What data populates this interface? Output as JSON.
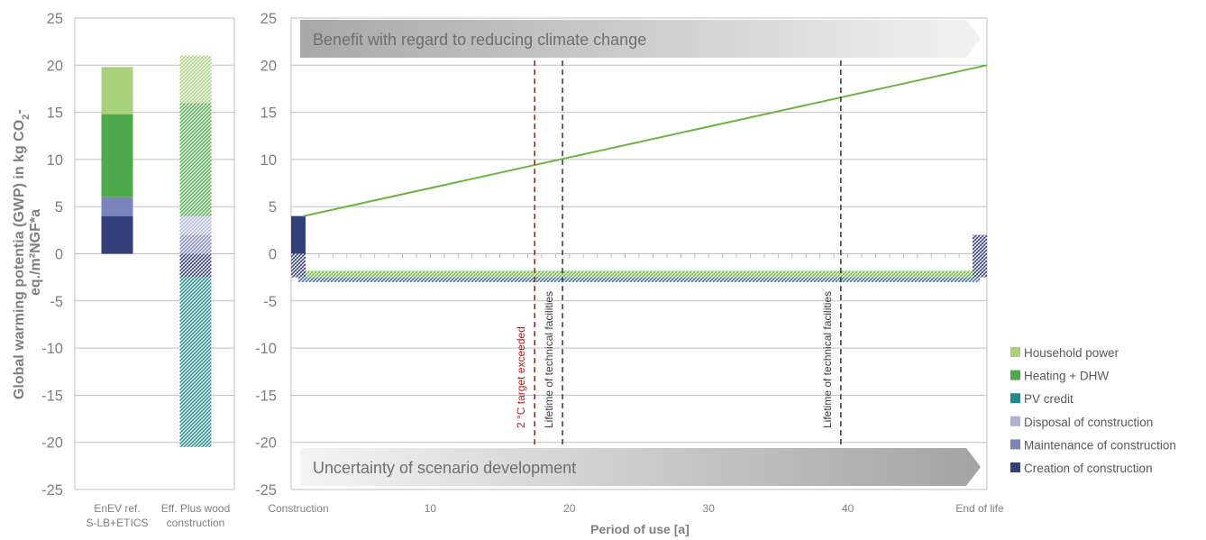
{
  "chart_data": [
    {
      "type": "bar",
      "stacked": true,
      "ylabel_line1": "Global warming potentia (GWP) in kg CO",
      "ylabel_sub": "2",
      "ylabel_tail": "-",
      "ylabel_line2": "eq./m²NGF*a",
      "ylim": [
        -25,
        25
      ],
      "yticks": [
        "25",
        "20",
        "15",
        "10",
        "5",
        "0",
        "-5",
        "-10",
        "-15",
        "-20",
        "-25"
      ],
      "categories": [
        {
          "line1": "EnEV ref.",
          "line2": "S-LB+ETICS"
        },
        {
          "line1": "Eff. Plus wood",
          "line2": "construction"
        }
      ],
      "series": [
        {
          "name": "Creation of construction",
          "color": "#34407a",
          "values": [
            4,
            -2.5
          ],
          "hatched": [
            false,
            true
          ]
        },
        {
          "name": "Maintenance of construction",
          "color": "#7b84bd",
          "values": [
            2,
            2
          ],
          "hatched": [
            false,
            true
          ]
        },
        {
          "name": "Disposal of construction",
          "color": "#aeb2d8",
          "values": [
            0,
            2
          ],
          "hatched": [
            false,
            true
          ]
        },
        {
          "name": "PV credit",
          "color": "#1f8c8c",
          "values": [
            0,
            -18
          ],
          "hatched": [
            false,
            true
          ]
        },
        {
          "name": "Heating + DHW",
          "color": "#4eab4b",
          "values": [
            8.8,
            12
          ],
          "hatched": [
            false,
            true
          ]
        },
        {
          "name": "Household power",
          "color": "#a9d07a",
          "values": [
            5,
            5
          ],
          "hatched": [
            false,
            true
          ]
        }
      ]
    },
    {
      "type": "line",
      "xlabel": "Period of use [a]",
      "ylim": [
        -25,
        25
      ],
      "xlim": [
        0,
        50
      ],
      "yticks": [
        "25",
        "20",
        "15",
        "10",
        "5",
        "0",
        "-5",
        "-10",
        "-15",
        "-20",
        "-25"
      ],
      "xticks": [
        {
          "x": 0,
          "label": "Construction"
        },
        {
          "x": 10,
          "label": "10"
        },
        {
          "x": 20,
          "label": "20"
        },
        {
          "x": 30,
          "label": "30"
        },
        {
          "x": 40,
          "label": "40"
        },
        {
          "x": 50,
          "label": "End of life"
        }
      ],
      "line": {
        "color": "#6cb33f",
        "x": [
          0,
          50
        ],
        "y": [
          4,
          20
        ]
      },
      "bars": [
        {
          "label": "Creation at construction",
          "x": 0,
          "y0": 0,
          "y1": 4,
          "color": "#34407a",
          "hatched": false
        },
        {
          "label": "Creation hatched at construction",
          "x": 0,
          "y0": 0,
          "y1": -2.5,
          "color": "#34407a",
          "hatched": true
        },
        {
          "label": "End of life disposal",
          "x": 50,
          "y0": 2,
          "y1": -2.5,
          "color": "#34407a",
          "hatched": true
        }
      ],
      "bands": [
        {
          "label": "annual green",
          "x0": 0.5,
          "x1": 49.5,
          "y0": -1.8,
          "y1": -2.5,
          "color": "#6cb33f"
        },
        {
          "label": "annual blue",
          "x0": 0.5,
          "x1": 49.5,
          "y0": -2.5,
          "y1": -3,
          "color": "#3a6d9a"
        }
      ],
      "vlines": [
        {
          "x": 17.5,
          "color": "#b22222",
          "label": "2 °C target exceeded"
        },
        {
          "x": 19.5,
          "color": "#404040",
          "label": "Lifetime of technical facilities"
        },
        {
          "x": 39.5,
          "color": "#404040",
          "label": "Lifetime of technical facilities"
        }
      ],
      "banner_top": "Benefit with regard to reducing climate change",
      "banner_bottom": "Uncertainty of scenario development"
    }
  ],
  "legend": [
    {
      "label": "Household power",
      "color": "#a9d07a"
    },
    {
      "label": "Heating + DHW",
      "color": "#4eab4b"
    },
    {
      "label": "PV credit",
      "color": "#1f8c8c"
    },
    {
      "label": "Disposal of construction",
      "color": "#aeb2d8"
    },
    {
      "label": "Maintenance of construction",
      "color": "#7b84bd"
    },
    {
      "label": "Creation of construction",
      "color": "#34407a"
    }
  ]
}
